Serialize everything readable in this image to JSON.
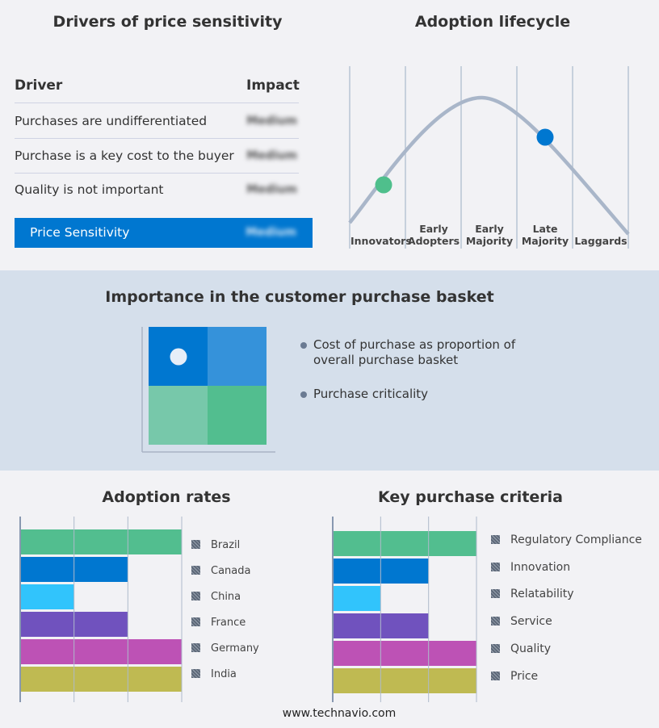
{
  "drivers": {
    "title": "Drivers of price sensitivity",
    "col_driver": "Driver",
    "col_impact": "Impact",
    "rows": [
      {
        "driver": "Purchases are undifferentiated",
        "impact": "Medium"
      },
      {
        "driver": "Purchase is a key cost to the buyer",
        "impact": "Medium"
      },
      {
        "driver": "Quality is not important",
        "impact": "Medium"
      }
    ],
    "summary": {
      "label": "Price Sensitivity",
      "impact": "Medium"
    }
  },
  "lifecycle": {
    "title": "Adoption lifecycle",
    "stages": [
      "Innovators",
      "Early Adopters",
      "Early Majority",
      "Late Majority",
      "Laggards"
    ],
    "markers": [
      {
        "stage": "Innovators",
        "color": "#4fbf8c"
      },
      {
        "stage": "Late Majority",
        "color": "#0077d0"
      }
    ]
  },
  "basket": {
    "title": "Importance in the customer purchase basket",
    "legend": [
      "Cost of purchase as proportion of overall purchase basket",
      "Purchase criticality"
    ],
    "colors": [
      "#0077d0",
      "#3592da",
      "#77c8aa",
      "#52be8f"
    ]
  },
  "chart_data": [
    {
      "type": "bar",
      "orientation": "horizontal",
      "title": "Adoption rates",
      "categories": [
        "Brazil",
        "Canada",
        "China",
        "France",
        "Germany",
        "India"
      ],
      "values": [
        3,
        2,
        1,
        2,
        3,
        3
      ],
      "xlim": [
        0,
        3
      ],
      "grid": true,
      "legend": "right",
      "colors": [
        "#52be8f",
        "#0077d0",
        "#31c4fc",
        "#7052be",
        "#bd52b5",
        "#bfba52"
      ]
    },
    {
      "type": "bar",
      "orientation": "horizontal",
      "title": "Key purchase criteria",
      "categories": [
        "Regulatory Compliance",
        "Innovation",
        "Relatability",
        "Service",
        "Quality",
        "Price"
      ],
      "values": [
        3,
        2,
        1,
        2,
        3,
        3
      ],
      "xlim": [
        0,
        3
      ],
      "grid": true,
      "legend": "right",
      "colors": [
        "#52be8f",
        "#0077d0",
        "#31c4fc",
        "#7052be",
        "#bd52b5",
        "#bfba52"
      ]
    }
  ],
  "footer": "www.technavio.com"
}
